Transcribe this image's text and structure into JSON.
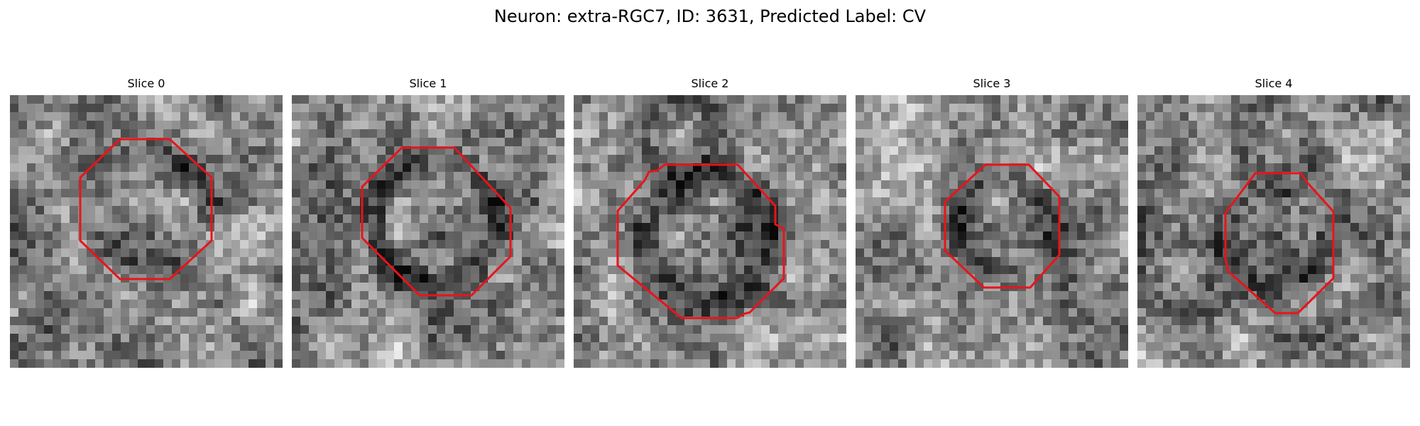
{
  "figure": {
    "title": "Neuron: extra-RGC7, ID: 3631, Predicted Label: CV"
  },
  "contour_color": "#e8141b",
  "panels": [
    {
      "title": "Slice 0",
      "seed": 11,
      "darkness": 0.35,
      "ring_strength": 0.35
    },
    {
      "title": "Slice 1",
      "seed": 23,
      "darkness": 0.25,
      "ring_strength": 0.65
    },
    {
      "title": "Slice 2",
      "seed": 37,
      "darkness": 0.3,
      "ring_strength": 0.55
    },
    {
      "title": "Slice 3",
      "seed": 51,
      "darkness": 0.45,
      "ring_strength": 0.45
    },
    {
      "title": "Slice 4",
      "seed": 67,
      "darkness": 0.35,
      "ring_strength": 0.4
    }
  ]
}
